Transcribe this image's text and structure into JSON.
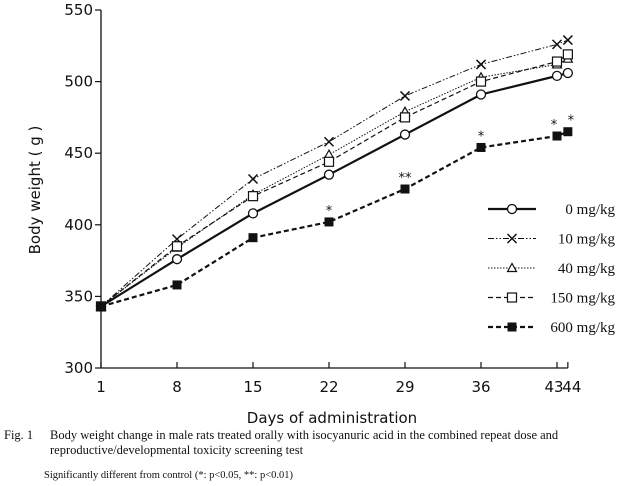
{
  "chart_data": {
    "type": "line",
    "title": "",
    "xlabel": "Days of administration",
    "ylabel": "Body weight ( g )",
    "x": [
      1,
      8,
      15,
      22,
      29,
      36,
      43,
      44
    ],
    "x_tick_labels": [
      "1",
      "8",
      "15",
      "22",
      "29",
      "36",
      "43",
      "44"
    ],
    "xlim": [
      1,
      44
    ],
    "ylim": [
      300,
      550
    ],
    "y_ticks": [
      300,
      350,
      400,
      450,
      500,
      550
    ],
    "y_tick_labels": [
      "300",
      "350",
      "400",
      "450",
      "500",
      "550"
    ],
    "grid": false,
    "legend_position": "right",
    "series": [
      {
        "name": "0 mg/kg",
        "marker": "open-circle",
        "line": "solid",
        "values": [
          343,
          376,
          408,
          435,
          463,
          491,
          504,
          506
        ],
        "significance": [
          "",
          "",
          "",
          "",
          "",
          "",
          "",
          ""
        ]
      },
      {
        "name": "10 mg/kg",
        "marker": "x",
        "line": "dash-dot-dot",
        "values": [
          343,
          390,
          432,
          458,
          490,
          512,
          526,
          529
        ],
        "significance": [
          "",
          "",
          "",
          "",
          "",
          "",
          "",
          ""
        ]
      },
      {
        "name": "40 mg/kg",
        "marker": "open-triangle",
        "line": "dotted",
        "values": [
          343,
          384,
          421,
          449,
          479,
          503,
          512,
          516
        ],
        "significance": [
          "",
          "",
          "",
          "",
          "",
          "",
          "",
          ""
        ]
      },
      {
        "name": "150 mg/kg",
        "marker": "open-square",
        "line": "dashed",
        "values": [
          343,
          385,
          420,
          444,
          475,
          500,
          514,
          519
        ],
        "significance": [
          "",
          "",
          "",
          "",
          "",
          "",
          "",
          ""
        ]
      },
      {
        "name": "600 mg/kg",
        "marker": "filled-square",
        "line": "bold-dashed",
        "values": [
          343,
          358,
          391,
          402,
          425,
          454,
          462,
          465
        ],
        "significance": [
          "",
          "",
          "",
          "*",
          "**",
          "*",
          "*",
          "*"
        ]
      }
    ]
  },
  "caption": {
    "fig_label": "Fig. 1",
    "text": "Body weight change in male rats treated orally with isocyanuric acid in the combined repeat dose and reproductive/developmental toxicity screening test",
    "note": "Significantly different from control (*: p<0.05, **: p<0.01)"
  }
}
